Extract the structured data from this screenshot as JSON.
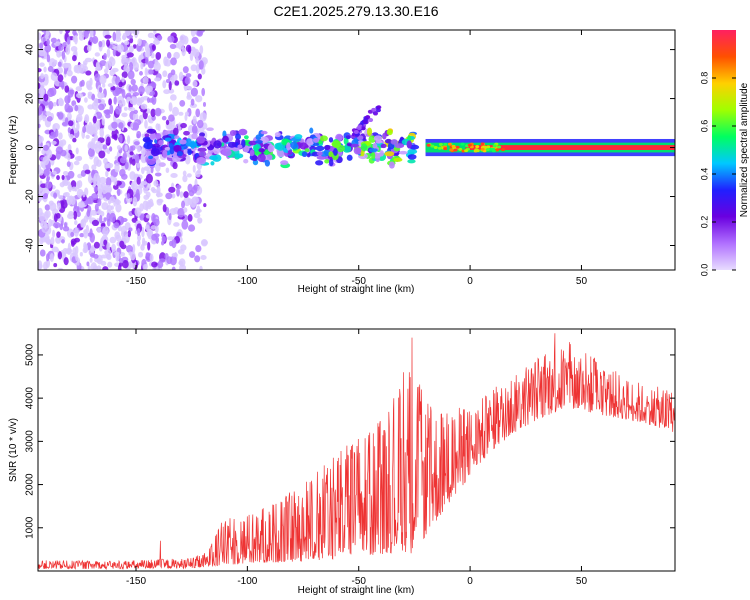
{
  "title": "C2E1.2025.279.13.30.E16",
  "chart_data": [
    {
      "type": "heatmap",
      "title": "C2E1.2025.279.13.30.E16",
      "xlabel": "Height of straight line (km)",
      "ylabel": "Frequency (Hz)",
      "xlim": [
        -194,
        92
      ],
      "ylim": [
        -50,
        48
      ],
      "xticks": [
        -150,
        -100,
        -50,
        0,
        50
      ],
      "yticks": [
        -40,
        -20,
        0,
        20,
        40
      ],
      "xtick_labels": [
        "-150",
        "-100",
        "-50",
        "0",
        "50"
      ],
      "ytick_labels": [
        "-40",
        "-20",
        "0",
        "20",
        "40"
      ],
      "colorbar": {
        "label": "Normalized spectral amplitude",
        "range": [
          0,
          1
        ],
        "ticks": [
          0,
          0.2,
          0.4,
          0.6,
          0.8
        ],
        "tick_labels": [
          "0.0",
          "0.2",
          "0.4",
          "0.6",
          "0.8"
        ],
        "colors": [
          "#e8dcff",
          "#b070ff",
          "#6a00e0",
          "#2020ff",
          "#00c8ff",
          "#00ff60",
          "#a0ff00",
          "#ffd000",
          "#ff5000",
          "#ff2060"
        ]
      },
      "features": [
        {
          "name": "scattered noise",
          "x_range": [
            -194,
            -125
          ],
          "freq_range": [
            -50,
            48
          ],
          "level": 0.15
        },
        {
          "name": "echo patches",
          "x_range": [
            -145,
            -25
          ],
          "freq_range": [
            -8,
            8
          ],
          "level": 0.5
        },
        {
          "name": "upward streak",
          "x_range": [
            -55,
            -40
          ],
          "freq_range": [
            0,
            18
          ],
          "level": 0.25
        },
        {
          "name": "narrow stable band",
          "x_range": [
            -20,
            92
          ],
          "freq_range": [
            -2,
            2
          ],
          "level": 0.9
        }
      ]
    },
    {
      "type": "line",
      "xlabel": "Height of straight line (km)",
      "ylabel": "SNR (10 * v/v)",
      "xlim": [
        -194,
        92
      ],
      "ylim": [
        0,
        5600
      ],
      "xticks": [
        -150,
        -100,
        -50,
        0,
        50
      ],
      "yticks": [
        1000,
        2000,
        3000,
        4000,
        5000
      ],
      "xtick_labels": [
        "-150",
        "-100",
        "-50",
        "0",
        "50"
      ],
      "ytick_labels": [
        "1000",
        "2000",
        "3000",
        "4000",
        "5000"
      ],
      "color": "#ee3333",
      "envelope": {
        "x": [
          -194,
          -160,
          -140,
          -125,
          -118,
          -113,
          -105,
          -95,
          -85,
          -75,
          -65,
          -55,
          -45,
          -38,
          -30,
          -26,
          -20,
          -10,
          0,
          10,
          20,
          30,
          40,
          50,
          60,
          70,
          80,
          92
        ],
        "min": [
          50,
          50,
          55,
          60,
          80,
          120,
          150,
          180,
          200,
          220,
          260,
          300,
          350,
          400,
          450,
          400,
          800,
          1500,
          2200,
          2800,
          3200,
          3500,
          3700,
          3700,
          3600,
          3500,
          3400,
          3200
        ],
        "max": [
          250,
          230,
          280,
          300,
          450,
          1100,
          1300,
          1400,
          1700,
          2000,
          2500,
          3000,
          3300,
          3600,
          4500,
          5000,
          3900,
          3800,
          3800,
          4200,
          4700,
          5000,
          5400,
          5200,
          4800,
          4500,
          4300,
          4200
        ]
      },
      "peaks": [
        {
          "x": -139,
          "y": 700
        },
        {
          "x": -26,
          "y": 5400
        },
        {
          "x": -30,
          "y": 4600
        },
        {
          "x": 38,
          "y": 5500
        },
        {
          "x": 45,
          "y": 5250
        }
      ]
    }
  ]
}
